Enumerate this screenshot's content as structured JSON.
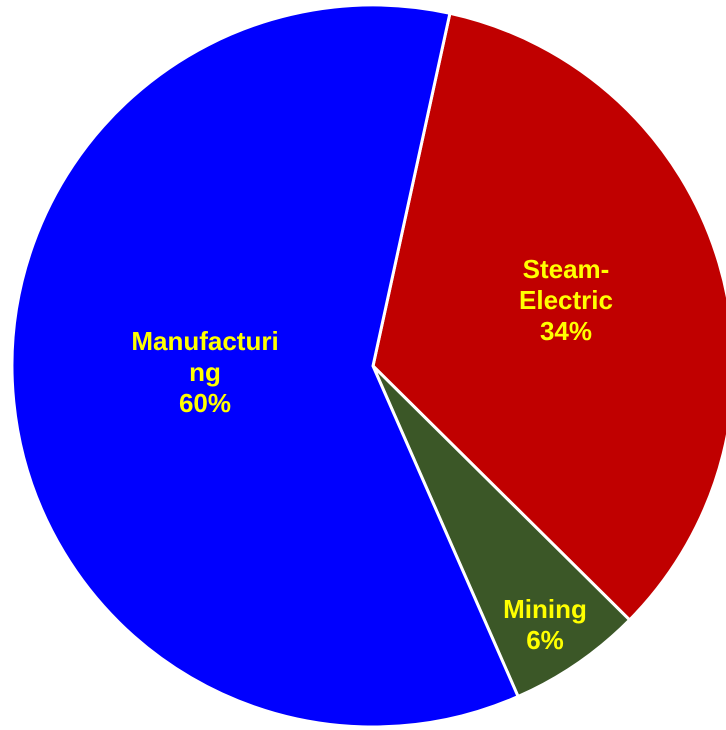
{
  "chart_data": {
    "type": "pie",
    "categories": [
      "Steam-Electric",
      "Mining",
      "Manufacturing"
    ],
    "values": [
      34,
      6,
      60
    ],
    "value_labels": [
      "34%",
      "6%",
      "60%"
    ],
    "colors": [
      "#c00000",
      "#3b5727",
      "#0000ff"
    ]
  }
}
